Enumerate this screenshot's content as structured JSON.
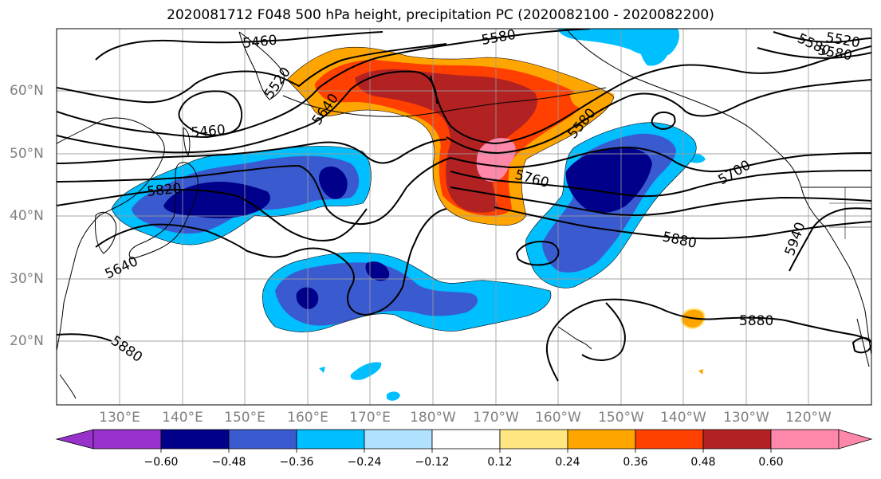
{
  "title": "2020081712 F048 500 hPa height, precipitation PC (2020082100 - 2020082200)",
  "lat_labels": [
    "60°N",
    "50°N",
    "40°N",
    "30°N",
    "20°N"
  ],
  "lon_labels": [
    "130°E",
    "140°E",
    "150°E",
    "160°E",
    "170°E",
    "180°W",
    "170°W",
    "160°W",
    "150°W",
    "140°W",
    "130°W",
    "120°W"
  ],
  "contour_labels": [
    "5460",
    "5580",
    "5520",
    "5580",
    "5460",
    "5640",
    "5580",
    "5820",
    "5760",
    "5700",
    "5640",
    "5880",
    "5940",
    "5880",
    "5880",
    "5520",
    "5580"
  ],
  "colorbar": {
    "ticks": [
      "−0.60",
      "−0.48",
      "−0.36",
      "−0.24",
      "−0.12",
      "0.12",
      "0.24",
      "0.36",
      "0.48",
      "0.60"
    ],
    "colors": [
      "#9932cc",
      "#00008b",
      "#3a5bd0",
      "#00bfff",
      "#b0e2ff",
      "#ffffff",
      "#ffe680",
      "#ffa500",
      "#ff4000",
      "#b22222",
      "#ff88aa"
    ]
  }
}
